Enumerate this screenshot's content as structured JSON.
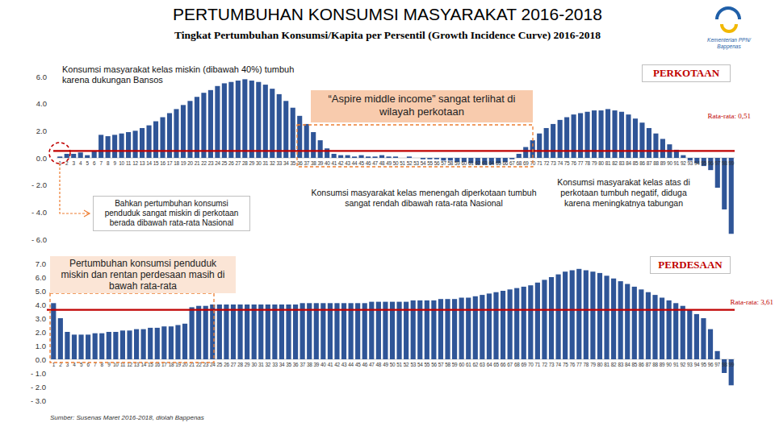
{
  "page": {
    "title": "PERTUMBUHAN KONSUMSI MASYARAKAT 2016-2018",
    "subtitle": "Tingkat Pertumbuhan Konsumsi/Kapita per Persentil (Growth Incidence Curve) 2016-2018",
    "source": "Sumber: Susenas Maret 2016-2018, diolah Bappenas",
    "logo": [
      "Kementerian PPN/",
      "Bappenas"
    ]
  },
  "chart_data": [
    {
      "type": "bar",
      "title": "PERKOTAAN",
      "color": "#2f5597",
      "grid": false,
      "categories": [
        1,
        2,
        3,
        4,
        5,
        6,
        7,
        8,
        9,
        10,
        11,
        12,
        13,
        14,
        15,
        16,
        17,
        18,
        19,
        20,
        21,
        22,
        23,
        24,
        25,
        26,
        27,
        28,
        29,
        30,
        31,
        32,
        33,
        34,
        35,
        36,
        37,
        38,
        39,
        40,
        41,
        42,
        43,
        44,
        45,
        46,
        47,
        48,
        49,
        50,
        51,
        52,
        53,
        54,
        55,
        56,
        57,
        58,
        59,
        60,
        61,
        62,
        63,
        64,
        65,
        66,
        67,
        68,
        69,
        70,
        71,
        72,
        73,
        74,
        75,
        76,
        77,
        78,
        79,
        80,
        81,
        82,
        83,
        84,
        85,
        86,
        87,
        88,
        89,
        90,
        91,
        92,
        93,
        94,
        95,
        96,
        97,
        98,
        99
      ],
      "values": [
        0.1,
        0.3,
        0.3,
        0.4,
        0.2,
        0.5,
        1.7,
        1.6,
        1.7,
        1.8,
        1.9,
        2.0,
        2.2,
        2.4,
        2.7,
        3.0,
        3.3,
        3.6,
        3.9,
        4.2,
        4.5,
        4.8,
        5.0,
        5.3,
        5.5,
        5.6,
        5.7,
        5.8,
        5.7,
        5.6,
        5.4,
        5.1,
        4.7,
        4.2,
        3.7,
        3.1,
        2.5,
        1.9,
        1.3,
        0.7,
        0.3,
        0.2,
        0.2,
        0.1,
        0.2,
        0.1,
        0.1,
        0.2,
        0.1,
        0.1,
        0.0,
        0.1,
        0.0,
        -0.1,
        -0.1,
        -0.1,
        -0.2,
        -0.2,
        -0.3,
        -0.3,
        -0.4,
        -0.5,
        -0.5,
        -0.5,
        -0.4,
        -0.3,
        -0.1,
        0.3,
        0.8,
        1.3,
        1.8,
        2.2,
        2.5,
        2.8,
        3.0,
        3.2,
        3.3,
        3.4,
        3.5,
        3.5,
        3.6,
        3.5,
        3.4,
        3.2,
        2.9,
        2.6,
        2.2,
        1.8,
        1.4,
        1.0,
        0.6,
        0.2,
        -0.2,
        -0.4,
        -0.6,
        -0.9,
        -2.2,
        -3.8,
        -5.6
      ],
      "ylim": [
        -6,
        6
      ],
      "yticks": [
        {
          "value": -6,
          "label": "- 6.0"
        },
        {
          "value": -4,
          "label": "- 4.0"
        },
        {
          "value": -2,
          "label": "- 2.0"
        },
        {
          "value": 0,
          "label": "0.0"
        },
        {
          "value": 2,
          "label": "2.0"
        },
        {
          "value": 4,
          "label": "4.0"
        },
        {
          "value": 6,
          "label": "6.0"
        }
      ],
      "average": 0.51,
      "average_label": "Rata-rata: 0,51",
      "annotations": [
        "Konsumsi masyarakat kelas miskin (dibawah 40%) tumbuh karena dukungan Bansos",
        "Bahkan pertumbuhan konsumsi penduduk sangat miskin di perkotaan berada dibawah rata-rata Nasional",
        "“Aspire middle income” sangat terlihat di wilayah perkotaan",
        "Konsumsi masyarakat kelas menengah diperkotaan tumbuh sangat rendah dibawah rata-rata Nasional",
        "Konsumsi masyarakat kelas atas di perkotaan tumbuh negatif, diduga karena meningkatnya tabungan"
      ]
    },
    {
      "type": "bar",
      "title": "PERDESAAN",
      "color": "#2f5597",
      "grid": false,
      "categories": [
        1,
        2,
        3,
        4,
        5,
        6,
        7,
        8,
        9,
        10,
        11,
        12,
        13,
        14,
        15,
        16,
        17,
        18,
        19,
        20,
        21,
        22,
        23,
        24,
        25,
        26,
        27,
        28,
        29,
        30,
        31,
        32,
        33,
        34,
        35,
        36,
        37,
        38,
        39,
        40,
        41,
        42,
        43,
        44,
        45,
        46,
        47,
        48,
        49,
        50,
        51,
        52,
        53,
        54,
        55,
        56,
        57,
        58,
        59,
        60,
        61,
        62,
        63,
        64,
        65,
        66,
        67,
        68,
        69,
        70,
        71,
        72,
        73,
        74,
        75,
        76,
        77,
        78,
        79,
        80,
        81,
        82,
        83,
        84,
        85,
        86,
        87,
        88,
        89,
        90,
        91,
        92,
        93,
        94,
        95,
        96,
        97,
        98,
        99
      ],
      "values": [
        4.1,
        3.0,
        2.0,
        1.8,
        1.8,
        1.8,
        1.9,
        1.9,
        2.0,
        2.0,
        2.1,
        2.1,
        2.2,
        2.2,
        2.3,
        2.3,
        2.4,
        2.4,
        2.5,
        2.6,
        3.8,
        3.9,
        3.9,
        4.0,
        4.0,
        4.0,
        4.0,
        4.0,
        4.0,
        4.0,
        4.0,
        4.0,
        4.0,
        4.0,
        4.0,
        4.0,
        4.1,
        4.1,
        4.1,
        4.1,
        4.1,
        4.1,
        4.1,
        4.1,
        4.1,
        4.1,
        4.2,
        4.2,
        4.2,
        4.2,
        4.2,
        4.2,
        4.3,
        4.3,
        4.3,
        4.3,
        4.4,
        4.4,
        4.4,
        4.5,
        4.5,
        4.6,
        4.7,
        4.8,
        4.9,
        5.0,
        5.1,
        5.2,
        5.3,
        5.4,
        5.6,
        5.8,
        6.0,
        6.2,
        6.4,
        6.5,
        6.6,
        6.5,
        6.4,
        6.3,
        6.1,
        5.9,
        5.7,
        5.5,
        5.3,
        5.1,
        4.9,
        4.7,
        4.5,
        4.3,
        4.1,
        3.9,
        3.6,
        3.3,
        3.0,
        2.2,
        0.6,
        -1.0,
        -1.9
      ],
      "ylim": [
        -3,
        7
      ],
      "yticks": [
        {
          "value": -3,
          "label": "- 3.0"
        },
        {
          "value": -2,
          "label": "- 2.0"
        },
        {
          "value": -1,
          "label": "- 1.0"
        },
        {
          "value": 0,
          "label": "0.0"
        },
        {
          "value": 1,
          "label": "1.0"
        },
        {
          "value": 2,
          "label": "2.0"
        },
        {
          "value": 3,
          "label": "3.0"
        },
        {
          "value": 4,
          "label": "4.0"
        },
        {
          "value": 5,
          "label": "5.0"
        },
        {
          "value": 6,
          "label": "6.0"
        },
        {
          "value": 7,
          "label": "7.0"
        }
      ],
      "average": 3.61,
      "average_label": "Rata-rata: 3,61",
      "annotations": [
        "Pertumbuhan konsumsi penduduk miskin dan rentan perdesaan masih di bawah rata-rata"
      ]
    }
  ]
}
